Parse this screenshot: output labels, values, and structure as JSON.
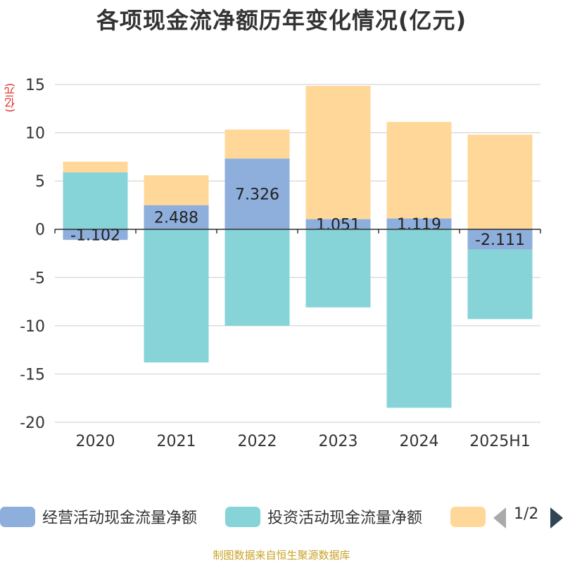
{
  "title": "各项现金流净额历年变化情况(亿元)",
  "y_unit": "(亿元)",
  "source_text": "制图数据来自恒生聚源数据库",
  "pager": {
    "text": "1/2"
  },
  "colors": {
    "operating": "#8eaedc",
    "investing": "#86d4d8",
    "financing": "#ffd899",
    "axis": "#333333",
    "grid": "#cccccc",
    "pager_active": "#2f4554",
    "pager_inactive": "#aaaaaa"
  },
  "chart_data": {
    "type": "bar",
    "stacked": true,
    "categories": [
      "2020",
      "2021",
      "2022",
      "2023",
      "2024",
      "2025H1"
    ],
    "ylim": [
      -20,
      15
    ],
    "yticks": [
      15,
      10,
      5,
      0,
      -5,
      -10,
      -15,
      -20
    ],
    "grid": true,
    "legend_position": "bottom",
    "series": [
      {
        "name": "经营活动现金流量净额",
        "values": [
          -1.102,
          2.488,
          7.326,
          1.051,
          1.119,
          -2.111
        ],
        "labels": [
          "-1.102",
          "2.488",
          "7.326",
          "1.051",
          "1.119",
          "-2.111"
        ]
      },
      {
        "name": "投资活动现金流量净额",
        "values": [
          5.9,
          -13.8,
          -10.0,
          -8.1,
          -18.5,
          -7.2
        ]
      },
      {
        "name": "",
        "values": [
          1.1,
          3.1,
          3.0,
          13.8,
          10.0,
          9.8
        ]
      }
    ]
  }
}
